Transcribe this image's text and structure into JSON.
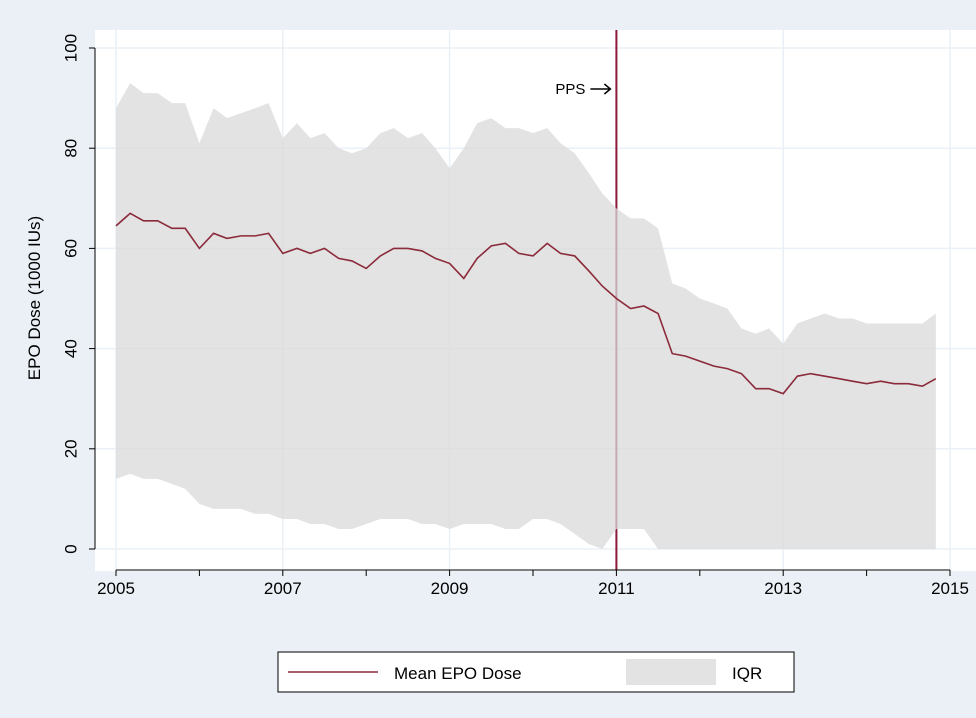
{
  "chart_data": {
    "type": "line",
    "ylabel": "EPO Dose (1000 IUs)",
    "annotation": "PPS",
    "vline": 2011,
    "xlim": [
      2005,
      2015
    ],
    "xticks": [
      2005,
      2007,
      2009,
      2011,
      2013,
      2015
    ],
    "xminorticks": [
      2006,
      2008,
      2010,
      2012,
      2014
    ],
    "ylim": [
      0,
      100
    ],
    "yticks": [
      0,
      20,
      40,
      60,
      80,
      100
    ],
    "grid": true,
    "x": [
      2005,
      2005.17,
      2005.33,
      2005.5,
      2005.67,
      2005.83,
      2006,
      2006.17,
      2006.33,
      2006.5,
      2006.67,
      2006.83,
      2007,
      2007.17,
      2007.33,
      2007.5,
      2007.67,
      2007.83,
      2008,
      2008.17,
      2008.33,
      2008.5,
      2008.67,
      2008.83,
      2009,
      2009.17,
      2009.33,
      2009.5,
      2009.67,
      2009.83,
      2010,
      2010.17,
      2010.33,
      2010.5,
      2010.67,
      2010.83,
      2011,
      2011.17,
      2011.33,
      2011.5,
      2011.67,
      2011.83,
      2012,
      2012.17,
      2012.33,
      2012.5,
      2012.67,
      2012.83,
      2013,
      2013.17,
      2013.33,
      2013.5,
      2013.67,
      2013.83,
      2014,
      2014.17,
      2014.33,
      2014.5,
      2014.67,
      2014.83
    ],
    "series": [
      {
        "name": "Mean EPO Dose",
        "color": "#8b2a3a",
        "values": [
          64.5,
          67,
          65.5,
          65.5,
          64,
          64,
          60,
          63,
          62,
          62.5,
          62.5,
          63,
          59,
          60,
          59,
          60,
          58,
          57.5,
          56,
          58.5,
          60,
          60,
          59.5,
          58,
          57,
          54,
          58,
          60.5,
          61,
          59,
          58.5,
          61,
          59,
          58.5,
          55.5,
          52.5,
          50,
          48,
          48.5,
          47,
          39,
          38.5,
          37.5,
          36.5,
          36,
          35,
          32,
          32,
          31,
          34.5,
          35,
          34.5,
          34,
          33.5,
          33,
          33.5,
          33,
          33,
          32.5,
          34
        ]
      },
      {
        "name": "IQR",
        "color": "#d9d9d9",
        "upper": [
          88,
          93,
          91,
          91,
          89,
          89,
          81,
          88,
          86,
          87,
          88,
          89,
          82,
          85,
          82,
          83,
          80,
          79,
          80,
          83,
          84,
          82,
          83,
          80,
          76,
          80,
          85,
          86,
          84,
          84,
          83,
          84,
          81,
          79,
          75,
          71,
          68,
          66,
          66,
          64,
          53,
          52,
          50,
          49,
          48,
          44,
          43,
          44,
          41,
          45,
          46,
          47,
          46,
          46,
          45,
          45,
          45,
          45,
          45,
          47
        ],
        "lower": [
          14,
          15,
          14,
          14,
          13,
          12,
          9,
          8,
          8,
          8,
          7,
          7,
          6,
          6,
          5,
          5,
          4,
          4,
          5,
          6,
          6,
          6,
          5,
          5,
          4,
          5,
          5,
          5,
          4,
          4,
          6,
          6,
          5,
          3,
          1,
          0,
          4,
          4,
          4,
          0,
          0,
          0,
          0,
          0,
          0,
          0,
          0,
          0,
          0,
          0,
          0,
          0,
          0,
          0,
          0,
          0,
          0,
          0,
          0,
          0
        ]
      }
    ]
  }
}
